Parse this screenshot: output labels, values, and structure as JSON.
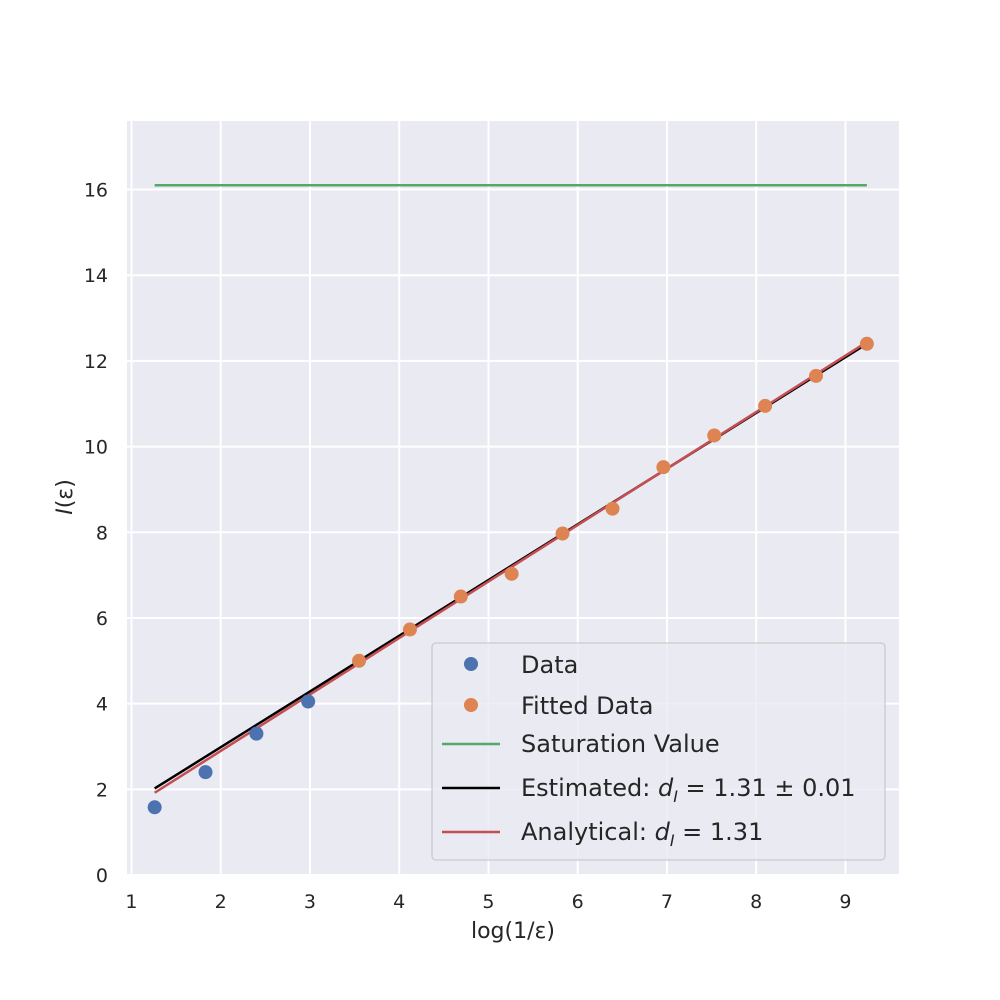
{
  "chart_data": {
    "type": "scatter",
    "title": "",
    "xlabel": "log(1/ε)",
    "ylabel": "I(ε)",
    "xlim": [
      0.95,
      9.6
    ],
    "ylim": [
      0,
      17.6
    ],
    "x_ticks": [
      1,
      2,
      3,
      4,
      5,
      6,
      7,
      8,
      9
    ],
    "y_ticks": [
      0,
      2,
      4,
      6,
      8,
      10,
      12,
      14,
      16
    ],
    "grid": true,
    "legend_position": "lower-right",
    "series": [
      {
        "name": "Data",
        "kind": "scatter",
        "color": "#4c72b0",
        "x": [
          1.26,
          1.83,
          2.4,
          2.98
        ],
        "y": [
          1.58,
          2.4,
          3.3,
          4.05
        ]
      },
      {
        "name": "Fitted Data",
        "kind": "scatter",
        "color": "#dd8452",
        "x": [
          3.55,
          4.12,
          4.69,
          5.26,
          5.83,
          6.39,
          6.96,
          7.53,
          8.1,
          8.67,
          9.24
        ],
        "y": [
          5.0,
          5.73,
          6.5,
          7.03,
          7.97,
          8.55,
          9.52,
          10.26,
          10.95,
          11.65,
          12.4
        ]
      },
      {
        "name": "Saturation Value",
        "kind": "line",
        "color": "#55a868",
        "x": [
          1.26,
          9.24
        ],
        "y": [
          16.1,
          16.1
        ]
      },
      {
        "name": "Estimated: d_I = 1.31 ± 0.01",
        "kind": "line",
        "color": "#000000",
        "x": [
          1.26,
          9.24
        ],
        "y": [
          2.02,
          12.4
        ]
      },
      {
        "name": "Analytical: d_I = 1.31",
        "kind": "line",
        "color": "#c44e52",
        "x": [
          1.26,
          9.24
        ],
        "y": [
          1.92,
          12.44
        ]
      }
    ]
  },
  "legend": {
    "data": "Data",
    "fitted": "Fitted Data",
    "saturation": "Saturation Value",
    "estimated_prefix": "Estimated: ",
    "estimated_suffix": " =  1.31 ±  0.01",
    "analytical_prefix": "Analytical: ",
    "analytical_suffix": " =  1.31",
    "symbol_d": "d",
    "symbol_sub": "I"
  },
  "axes": {
    "xlabel": "log(1/ε)",
    "ylabel_symbol": "I",
    "ylabel_arg": "(ε)"
  }
}
